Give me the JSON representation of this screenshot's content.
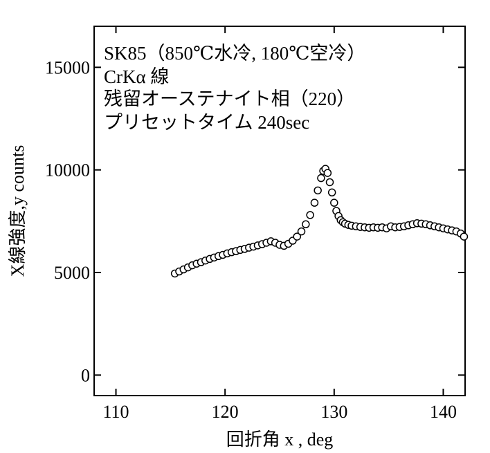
{
  "chart_data": {
    "type": "scatter",
    "title": "",
    "xlabel": "回折角 x , deg",
    "ylabel": "X線強度,y counts",
    "xlim": [
      108,
      142
    ],
    "ylim": [
      -1000,
      17000
    ],
    "xticks": [
      110,
      120,
      130,
      140
    ],
    "yticks": [
      0,
      5000,
      10000,
      15000
    ],
    "xtick_labels": [
      "110",
      "120",
      "130",
      "140"
    ],
    "ytick_labels": [
      "0",
      "5000",
      "10000",
      "15000"
    ],
    "grid": false,
    "legend": "none",
    "marker": "open-circle",
    "marker_color": "#000000",
    "annotations": [
      "SK85（850℃水冷, 180℃空冷）",
      "CrKα 線",
      "残留オーステナイト相（220）",
      "プリセットタイム 240sec"
    ],
    "series": [
      {
        "x": [
          115.4,
          115.8,
          116.2,
          116.6,
          117.0,
          117.4,
          117.8,
          118.2,
          118.6,
          119.0,
          119.4,
          119.8,
          120.2,
          120.6,
          121.0,
          121.4,
          121.8,
          122.2,
          122.6,
          123.0,
          123.4,
          123.8,
          124.2,
          124.6,
          125.0,
          125.4,
          125.8,
          126.2,
          126.6,
          127.0,
          127.4,
          127.8,
          128.2,
          128.5,
          128.8,
          129.0,
          129.2,
          129.4,
          129.6,
          129.8,
          130.0,
          130.2,
          130.4,
          130.6,
          130.8,
          131.0,
          131.3,
          131.6,
          132.0,
          132.4,
          132.8,
          133.2,
          133.6,
          134.0,
          134.4,
          134.8,
          135.2,
          135.6,
          136.0,
          136.4,
          136.8,
          137.2,
          137.6,
          138.0,
          138.4,
          138.8,
          139.2,
          139.6,
          140.0,
          140.4,
          140.8,
          141.2,
          141.6,
          141.9
        ],
        "y": [
          4950,
          5050,
          5150,
          5250,
          5350,
          5430,
          5500,
          5580,
          5660,
          5730,
          5800,
          5860,
          5930,
          5990,
          6040,
          6100,
          6150,
          6210,
          6260,
          6320,
          6380,
          6450,
          6520,
          6450,
          6350,
          6300,
          6400,
          6550,
          6750,
          7000,
          7350,
          7800,
          8400,
          9000,
          9600,
          9950,
          10050,
          9850,
          9400,
          8900,
          8400,
          8000,
          7750,
          7550,
          7450,
          7380,
          7320,
          7280,
          7250,
          7220,
          7200,
          7180,
          7200,
          7180,
          7200,
          7150,
          7250,
          7200,
          7220,
          7250,
          7300,
          7350,
          7400,
          7380,
          7350,
          7300,
          7250,
          7200,
          7150,
          7100,
          7050,
          7000,
          6900,
          6750
        ]
      }
    ]
  }
}
